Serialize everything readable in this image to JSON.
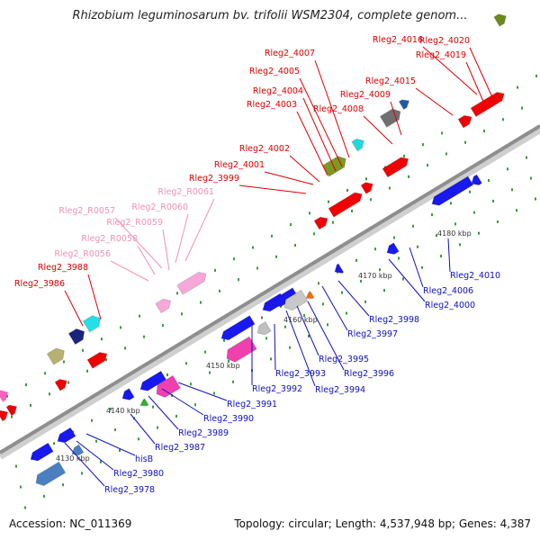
{
  "title": "Rhizobium leguminosarum bv. trifolii WSM2304, complete genom...",
  "footer": {
    "accession": "Accession: NC_011369",
    "summary": "Topology: circular; Length: 4,537,948 bp; Genes: 4,387"
  },
  "colors": {
    "forward_label": "#e00000",
    "forward_rna_label": "#f090b8",
    "reverse_label": "#1010c0",
    "backbone": "#9a9a9a"
  },
  "ticks": [
    "4130 kbp",
    "4140 kbp",
    "4150 kbp",
    "4160 kbp",
    "4170 kbp",
    "4180 kbp"
  ],
  "forward_genes": [
    "Rleg2_4016",
    "Rleg2_4020",
    "Rleg2_4019",
    "Rleg2_4007",
    "Rleg2_4015",
    "Rleg2_4005",
    "Rleg2_4009",
    "Rleg2_4004",
    "Rleg2_4003",
    "Rleg2_4008",
    "Rleg2_4002",
    "Rleg2_4001",
    "Rleg2_3999",
    "Rleg2_3988",
    "Rleg2_3986"
  ],
  "rna_genes": [
    "Rleg2_R0061",
    "Rleg2_R0060",
    "Rleg2_R0057",
    "Rleg2_R0059",
    "Rleg2_R0058",
    "Rleg2_R0056"
  ],
  "reverse_genes": [
    "Rleg2_4010",
    "Rleg2_4006",
    "Rleg2_4000",
    "Rleg2_3998",
    "Rleg2_3997",
    "Rleg2_3995",
    "Rleg2_3996",
    "Rleg2_3993",
    "Rleg2_3994",
    "Rleg2_3992",
    "Rleg2_3991",
    "Rleg2_3990",
    "Rleg2_3989",
    "Rleg2_3987",
    "hisB",
    "Rleg2_3980",
    "Rleg2_3978"
  ]
}
